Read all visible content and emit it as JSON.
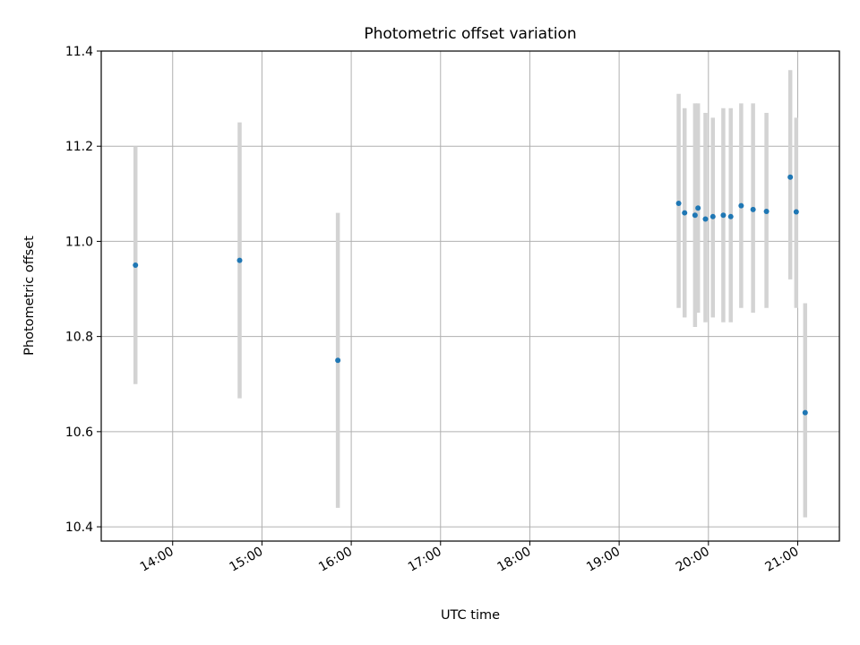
{
  "chart_data": {
    "type": "scatter",
    "title": "Photometric offset variation",
    "xlabel": "UTC time",
    "ylabel": "Photometric offset",
    "xlim": [
      "13:12",
      "21:28"
    ],
    "ylim": [
      10.37,
      11.4
    ],
    "grid": true,
    "x_ticks": [
      "14:00",
      "15:00",
      "16:00",
      "17:00",
      "18:00",
      "19:00",
      "20:00",
      "21:00"
    ],
    "y_ticks": [
      10.4,
      10.6,
      10.8,
      11.0,
      11.2,
      11.4
    ],
    "y_tick_labels": [
      "10.4",
      "10.6",
      "10.8",
      "11.0",
      "11.2",
      "11.4"
    ],
    "marker_color": "#1f77b4",
    "errorbar_color": "#d3d3d3",
    "points": [
      {
        "x": "13:35",
        "y": 10.95,
        "ylow": 10.7,
        "yhigh": 11.2
      },
      {
        "x": "14:45",
        "y": 10.96,
        "ylow": 10.67,
        "yhigh": 11.25
      },
      {
        "x": "15:51",
        "y": 10.75,
        "ylow": 10.44,
        "yhigh": 11.06
      },
      {
        "x": "19:40",
        "y": 11.08,
        "ylow": 10.86,
        "yhigh": 11.31
      },
      {
        "x": "19:44",
        "y": 11.06,
        "ylow": 10.84,
        "yhigh": 11.28
      },
      {
        "x": "19:51",
        "y": 11.055,
        "ylow": 10.82,
        "yhigh": 11.29
      },
      {
        "x": "19:53",
        "y": 11.07,
        "ylow": 10.85,
        "yhigh": 11.29
      },
      {
        "x": "19:58",
        "y": 11.047,
        "ylow": 10.83,
        "yhigh": 11.27
      },
      {
        "x": "20:03",
        "y": 11.052,
        "ylow": 10.84,
        "yhigh": 11.26
      },
      {
        "x": "20:10",
        "y": 11.055,
        "ylow": 10.83,
        "yhigh": 11.28
      },
      {
        "x": "20:15",
        "y": 11.052,
        "ylow": 10.83,
        "yhigh": 11.28
      },
      {
        "x": "20:22",
        "y": 11.075,
        "ylow": 10.86,
        "yhigh": 11.29
      },
      {
        "x": "20:30",
        "y": 11.067,
        "ylow": 10.85,
        "yhigh": 11.29
      },
      {
        "x": "20:39",
        "y": 11.063,
        "ylow": 10.86,
        "yhigh": 11.27
      },
      {
        "x": "20:55",
        "y": 11.135,
        "ylow": 10.92,
        "yhigh": 11.36
      },
      {
        "x": "20:59",
        "y": 11.062,
        "ylow": 10.86,
        "yhigh": 11.26
      },
      {
        "x": "21:05",
        "y": 10.64,
        "ylow": 10.42,
        "yhigh": 10.87
      }
    ]
  }
}
